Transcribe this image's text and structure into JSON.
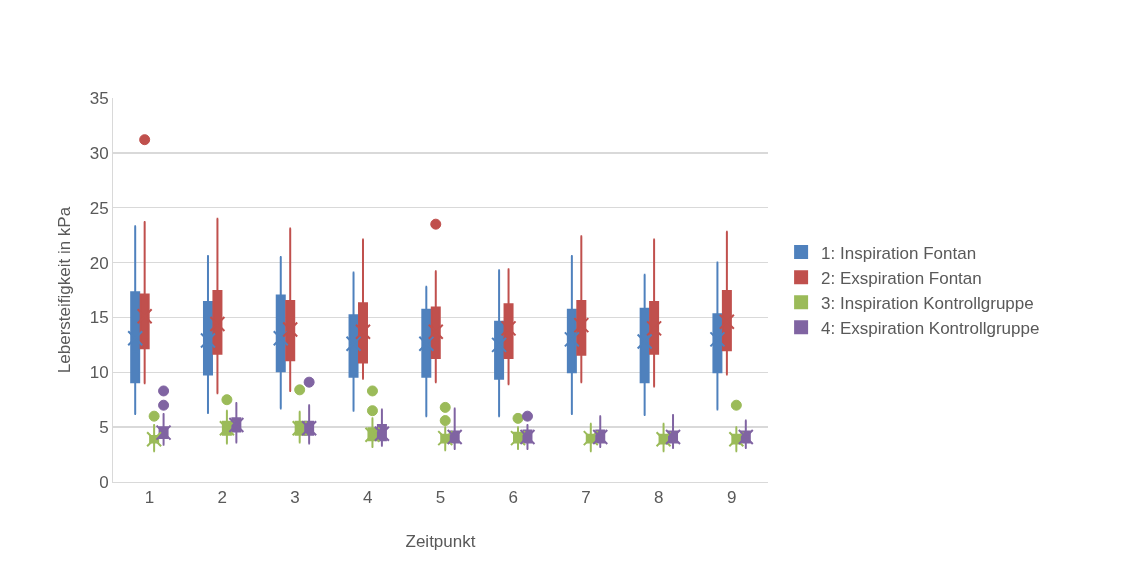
{
  "chart_data": {
    "type": "box",
    "xlabel": "Zeitpunkt",
    "ylabel": "Lebersteifigkeit in kPa",
    "categories": [
      "1",
      "2",
      "3",
      "4",
      "5",
      "6",
      "7",
      "8",
      "9"
    ],
    "ylim": [
      0,
      35
    ],
    "yticks": [
      0,
      5,
      10,
      15,
      20,
      25,
      30,
      35
    ],
    "grid": "y",
    "legend": "right",
    "series": [
      {
        "name": "1: Inspiration Fontan",
        "color": "#4f81bd",
        "boxes": [
          {
            "low": 6.2,
            "q1": 9.1,
            "median": 11.9,
            "q3": 17.3,
            "high": 23.3,
            "mean": 13.1
          },
          {
            "low": 6.3,
            "q1": 9.8,
            "median": 12.5,
            "q3": 16.4,
            "high": 20.6,
            "mean": 12.9
          },
          {
            "low": 6.7,
            "q1": 10.1,
            "median": 13.1,
            "q3": 17.0,
            "high": 20.5,
            "mean": 13.1
          },
          {
            "low": 6.5,
            "q1": 9.6,
            "median": 12.6,
            "q3": 15.2,
            "high": 19.1,
            "mean": 12.6
          },
          {
            "low": 6.0,
            "q1": 9.6,
            "median": 12.6,
            "q3": 15.7,
            "high": 17.8,
            "mean": 12.6
          },
          {
            "low": 6.0,
            "q1": 9.4,
            "median": 12.5,
            "q3": 14.6,
            "high": 19.3,
            "mean": 12.5
          },
          {
            "low": 6.2,
            "q1": 10.0,
            "median": 13.0,
            "q3": 15.7,
            "high": 20.6,
            "mean": 13.0
          },
          {
            "low": 6.1,
            "q1": 9.1,
            "median": 12.8,
            "q3": 15.8,
            "high": 18.9,
            "mean": 12.8
          },
          {
            "low": 6.6,
            "q1": 10.0,
            "median": 13.0,
            "q3": 15.3,
            "high": 20.0,
            "mean": 13.0
          }
        ]
      },
      {
        "name": "2: Exspiration Fontan",
        "color": "#c0504d",
        "boxes": [
          {
            "low": 9.0,
            "q1": 12.2,
            "median": 13.2,
            "q3": 17.1,
            "high": 23.7,
            "mean": 15.1,
            "outliers": [
              31.2
            ]
          },
          {
            "low": 8.1,
            "q1": 11.7,
            "median": 14.5,
            "q3": 17.4,
            "high": 24.0,
            "mean": 14.4
          },
          {
            "low": 8.3,
            "q1": 11.1,
            "median": 13.1,
            "q3": 16.5,
            "high": 23.1,
            "mean": 13.9
          },
          {
            "low": 9.4,
            "q1": 10.9,
            "median": 13.5,
            "q3": 16.3,
            "high": 22.1,
            "mean": 13.7
          },
          {
            "low": 9.1,
            "q1": 11.3,
            "median": 12.7,
            "q3": 15.9,
            "high": 19.2,
            "mean": 13.7,
            "outliers": [
              23.5
            ]
          },
          {
            "low": 8.9,
            "q1": 11.3,
            "median": 13.8,
            "q3": 16.2,
            "high": 19.4,
            "mean": 14.0
          },
          {
            "low": 9.1,
            "q1": 11.6,
            "median": 14.4,
            "q3": 16.5,
            "high": 22.4,
            "mean": 14.3
          },
          {
            "low": 8.7,
            "q1": 11.7,
            "median": 13.6,
            "q3": 16.4,
            "high": 22.1,
            "mean": 14.0
          },
          {
            "low": 9.8,
            "q1": 12.0,
            "median": 13.3,
            "q3": 17.4,
            "high": 22.8,
            "mean": 14.6
          }
        ]
      },
      {
        "name": "3: Inspiration Kontrollgruppe",
        "color": "#9bbb59",
        "boxes": [
          {
            "low": 2.8,
            "q1": 3.6,
            "median": 3.9,
            "q3": 4.2,
            "high": 5.2,
            "mean": 3.9,
            "outliers": [
              6.0
            ]
          },
          {
            "low": 3.5,
            "q1": 4.3,
            "median": 4.9,
            "q3": 5.5,
            "high": 6.5,
            "mean": 4.9,
            "outliers": [
              7.5
            ]
          },
          {
            "low": 3.6,
            "q1": 4.3,
            "median": 4.9,
            "q3": 5.5,
            "high": 6.4,
            "mean": 4.9,
            "outliers": [
              8.4
            ]
          },
          {
            "low": 3.2,
            "q1": 3.8,
            "median": 4.3,
            "q3": 4.9,
            "high": 5.8,
            "mean": 4.3,
            "outliers": [
              8.3,
              6.5
            ]
          },
          {
            "low": 2.9,
            "q1": 3.6,
            "median": 4.0,
            "q3": 4.3,
            "high": 5.0,
            "mean": 4.0,
            "outliers": [
              6.8,
              5.6
            ]
          },
          {
            "low": 3.0,
            "q1": 3.6,
            "median": 4.0,
            "q3": 4.5,
            "high": 5.0,
            "mean": 4.0,
            "outliers": [
              5.8
            ]
          },
          {
            "low": 2.8,
            "q1": 3.6,
            "median": 4.0,
            "q3": 4.3,
            "high": 5.3,
            "mean": 4.0
          },
          {
            "low": 2.8,
            "q1": 3.5,
            "median": 3.9,
            "q3": 4.3,
            "high": 5.3,
            "mean": 3.9
          },
          {
            "low": 2.8,
            "q1": 3.5,
            "median": 3.9,
            "q3": 4.3,
            "high": 5.0,
            "mean": 3.9,
            "outliers": [
              7.0
            ]
          }
        ]
      },
      {
        "name": "4: Exspiration Kontrollgruppe",
        "color": "#8064a2",
        "boxes": [
          {
            "low": 3.4,
            "q1": 4.0,
            "median": 4.5,
            "q3": 5.0,
            "high": 6.2,
            "mean": 4.5,
            "outliers": [
              8.3,
              7.0
            ]
          },
          {
            "low": 3.6,
            "q1": 4.6,
            "median": 5.2,
            "q3": 5.8,
            "high": 7.2,
            "mean": 5.2
          },
          {
            "low": 3.5,
            "q1": 4.3,
            "median": 4.9,
            "q3": 5.5,
            "high": 7.0,
            "mean": 4.9,
            "outliers": [
              9.1
            ]
          },
          {
            "low": 3.3,
            "q1": 3.8,
            "median": 4.5,
            "q3": 5.2,
            "high": 6.6,
            "mean": 4.4
          },
          {
            "low": 3.0,
            "q1": 3.6,
            "median": 4.1,
            "q3": 4.6,
            "high": 6.7,
            "mean": 4.1
          },
          {
            "low": 3.0,
            "q1": 3.6,
            "median": 4.1,
            "q3": 4.7,
            "high": 5.2,
            "mean": 4.1,
            "outliers": [
              6.0
            ]
          },
          {
            "low": 3.2,
            "q1": 3.6,
            "median": 4.1,
            "q3": 4.7,
            "high": 6.0,
            "mean": 4.1
          },
          {
            "low": 3.1,
            "q1": 3.6,
            "median": 4.1,
            "q3": 4.6,
            "high": 6.1,
            "mean": 4.1
          },
          {
            "low": 3.1,
            "q1": 3.6,
            "median": 4.1,
            "q3": 4.6,
            "high": 5.6,
            "mean": 4.1
          }
        ]
      }
    ]
  }
}
